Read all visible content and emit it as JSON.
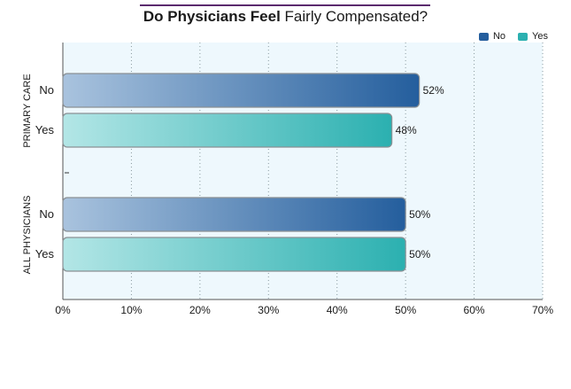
{
  "chart_data": {
    "type": "bar",
    "orientation": "horizontal",
    "title": "Do Physicians Feel Fairly Compensated?",
    "title_bold_part": "Do Physicians Feel",
    "title_regular_part": "Fairly Compensated?",
    "groups": [
      {
        "name": "PRIMARY CARE",
        "bars": [
          {
            "category": "No",
            "value": 52,
            "label": "52%",
            "series": "No"
          },
          {
            "category": "Yes",
            "value": 48,
            "label": "48%",
            "series": "Yes"
          }
        ]
      },
      {
        "name": "ALL PHYSICIANS",
        "bars": [
          {
            "category": "No",
            "value": 50,
            "label": "50%",
            "series": "No"
          },
          {
            "category": "Yes",
            "value": 50,
            "label": "50%",
            "series": "Yes"
          }
        ]
      }
    ],
    "series": [
      {
        "name": "No",
        "color": "#245e9d",
        "light": "#a9c3de"
      },
      {
        "name": "Yes",
        "color": "#2bb0b0",
        "light": "#b3e6e6"
      }
    ],
    "xlim": [
      0,
      70
    ],
    "xticks": [
      "0%",
      "10%",
      "20%",
      "30%",
      "40%",
      "50%",
      "60%",
      "70%"
    ],
    "xtick_values": [
      0,
      10,
      20,
      30,
      40,
      50,
      60,
      70
    ],
    "grid": true,
    "legend_position": "top-right"
  },
  "colors": {
    "plot_bg": "#eef8fd",
    "grid": "#8a9aa0",
    "title_rule": "#5b2a6e"
  }
}
